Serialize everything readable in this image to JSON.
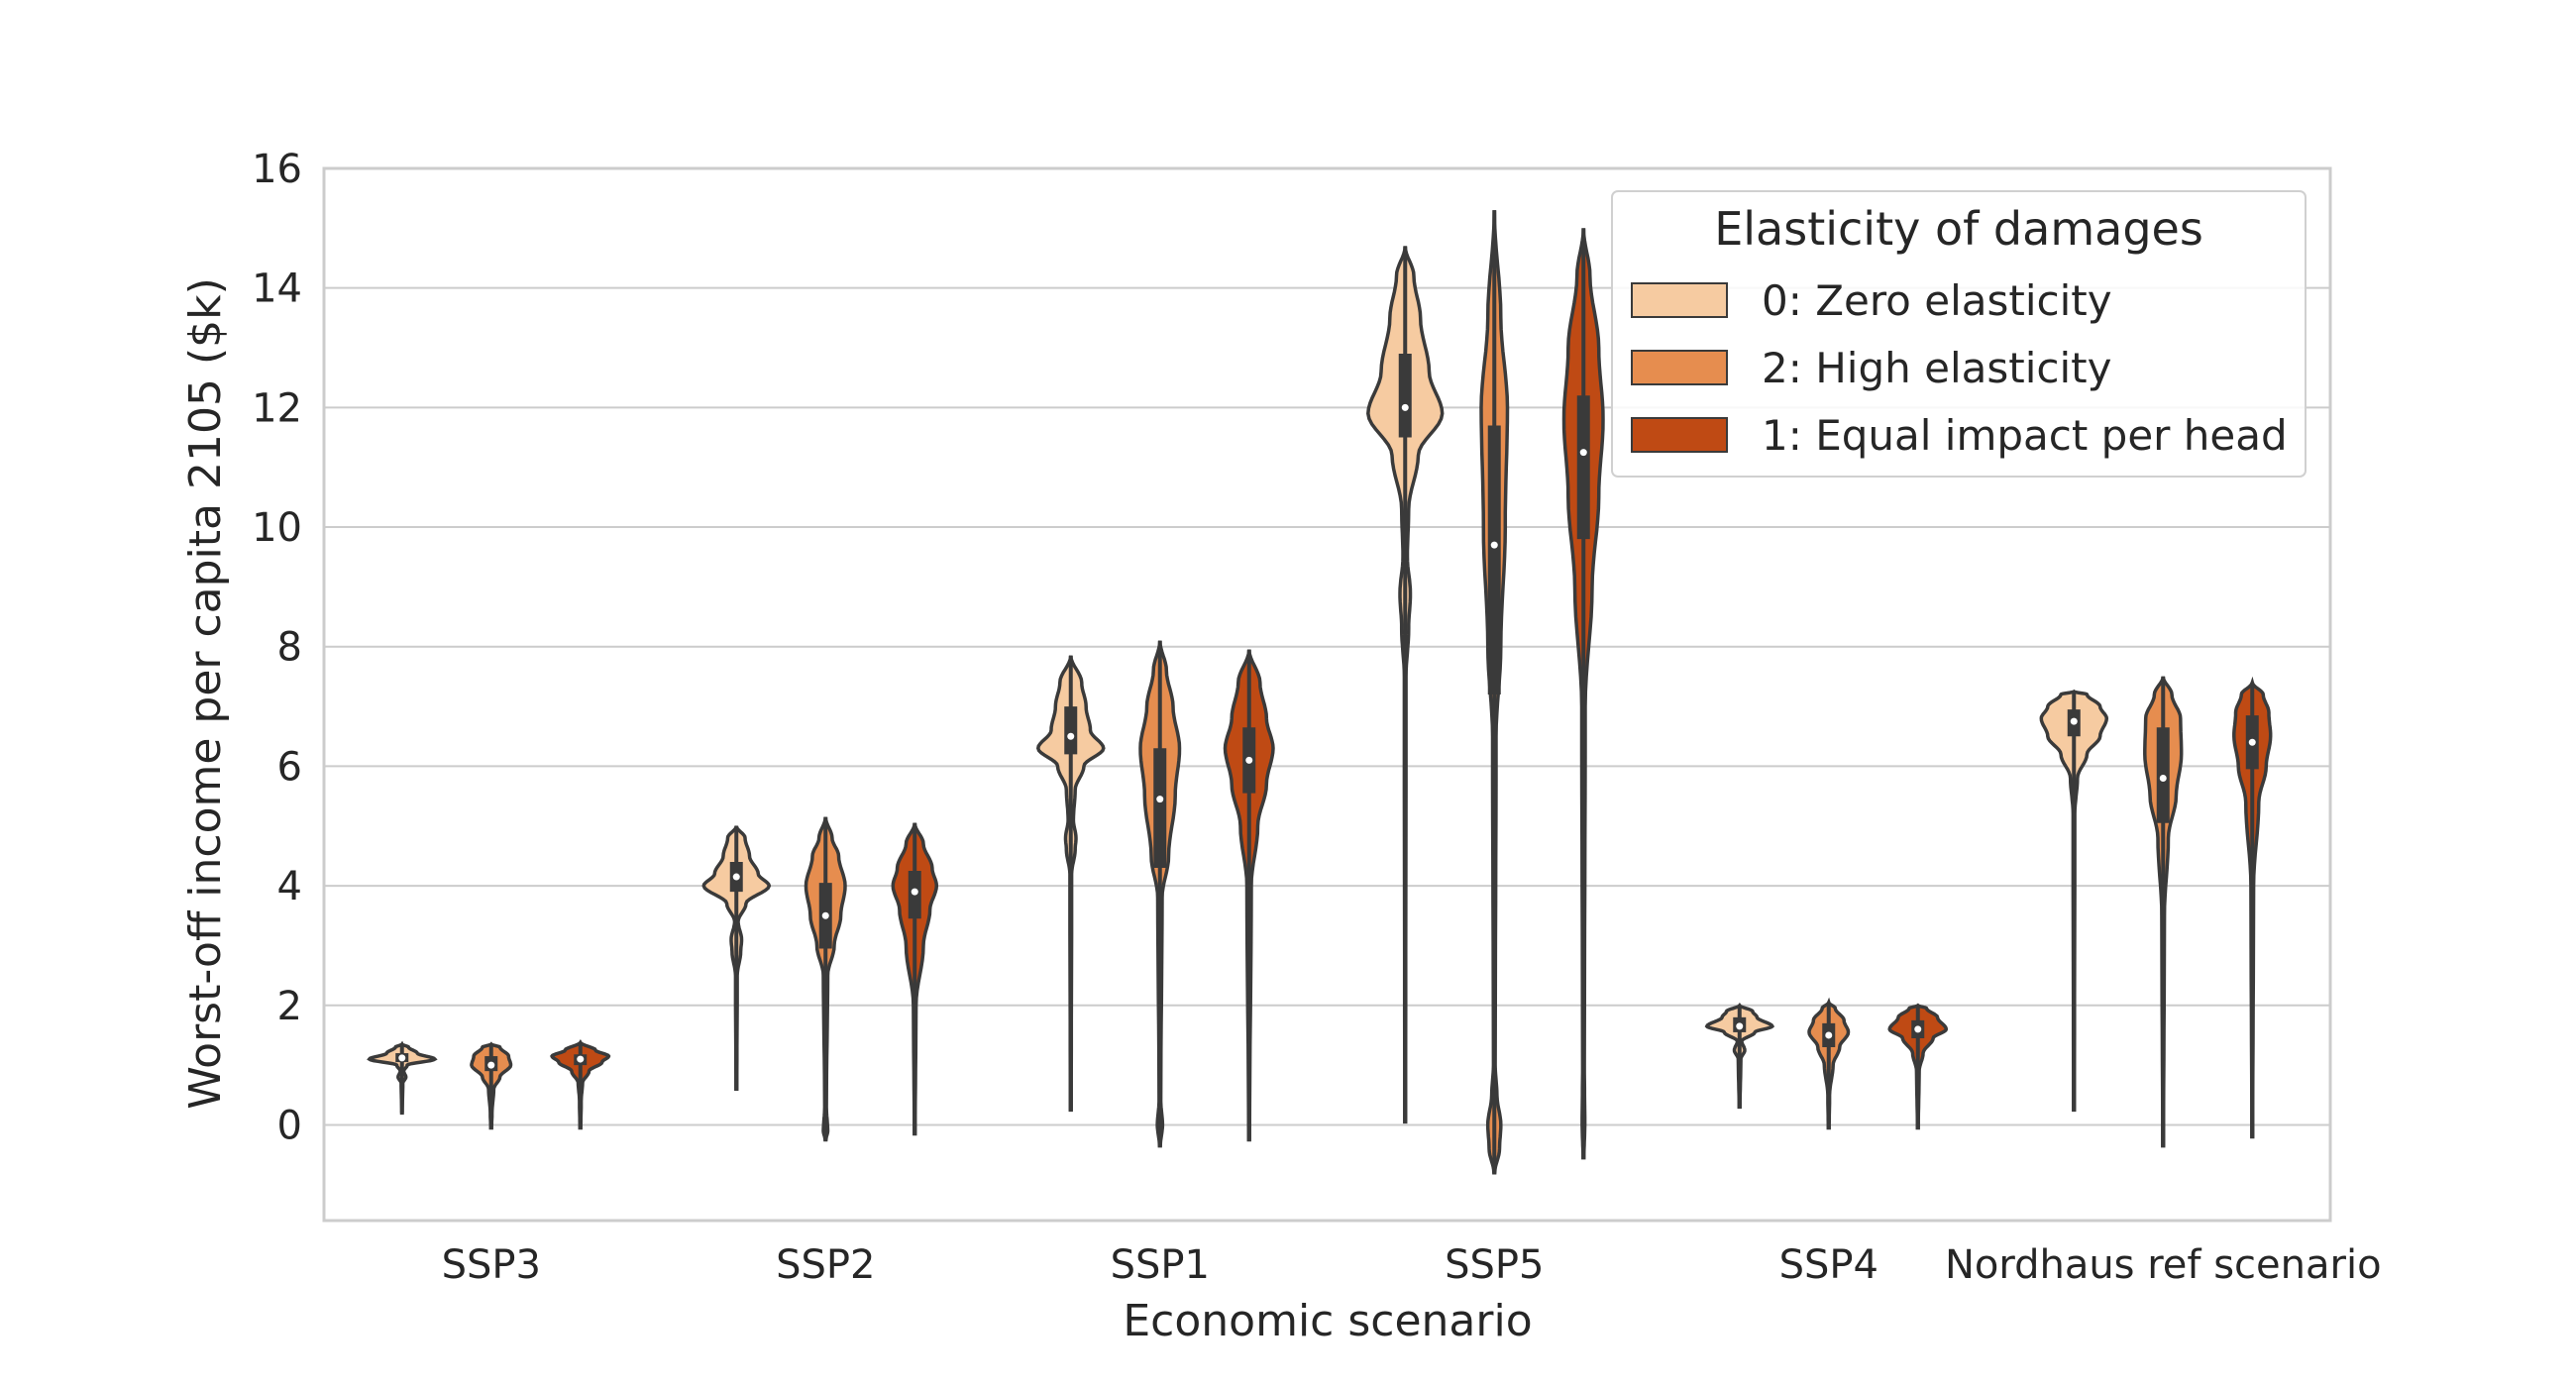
{
  "chart_data": {
    "type": "violin",
    "xlabel": "Economic scenario",
    "ylabel": "Worst-off income per capita 2105 ($k)",
    "ylim": [
      -1.6,
      16
    ],
    "yticks": [
      0,
      2,
      4,
      6,
      8,
      10,
      12,
      14,
      16
    ],
    "grid": true,
    "legend_position": "top-right",
    "legend": {
      "title": "Elasticity of damages",
      "entries": [
        {
          "label": "0: Zero elasticity",
          "color": "#f6cba1"
        },
        {
          "label": "2: High elasticity",
          "color": "#e68d4f"
        },
        {
          "label": "1: Equal impact per head",
          "color": "#bf4a14"
        }
      ]
    },
    "categories": [
      "SSP3",
      "SSP2",
      "SSP1",
      "SSP5",
      "SSP4",
      "Nordhaus ref scenario"
    ],
    "series": [
      {
        "name": "0: Zero elasticity",
        "color": "#f6cba1",
        "violins": [
          {
            "min": 0.2,
            "q1": 1.05,
            "median": 1.12,
            "q3": 1.2,
            "max": 1.35,
            "width_profile": [
              [
                0.2,
                0.005
              ],
              [
                0.7,
                0.02
              ],
              [
                0.8,
                0.09
              ],
              [
                0.9,
                0.04
              ],
              [
                1.0,
                0.12
              ],
              [
                1.1,
                0.75
              ],
              [
                1.2,
                0.35
              ],
              [
                1.3,
                0.15
              ],
              [
                1.35,
                0.0
              ]
            ]
          },
          {
            "min": 0.6,
            "q1": 3.9,
            "median": 4.15,
            "q3": 4.4,
            "max": 5.0,
            "width_profile": [
              [
                0.6,
                0.01
              ],
              [
                2.5,
                0.02
              ],
              [
                2.9,
                0.1
              ],
              [
                3.1,
                0.12
              ],
              [
                3.4,
                0.04
              ],
              [
                3.7,
                0.22
              ],
              [
                4.0,
                0.75
              ],
              [
                4.2,
                0.5
              ],
              [
                4.5,
                0.3
              ],
              [
                4.8,
                0.2
              ],
              [
                5.0,
                0.0
              ]
            ]
          },
          {
            "min": 0.25,
            "q1": 6.2,
            "median": 6.5,
            "q3": 7.0,
            "max": 7.85,
            "width_profile": [
              [
                0.25,
                0.01
              ],
              [
                4.2,
                0.02
              ],
              [
                4.6,
                0.1
              ],
              [
                4.8,
                0.12
              ],
              [
                5.1,
                0.06
              ],
              [
                5.6,
                0.1
              ],
              [
                6.0,
                0.3
              ],
              [
                6.3,
                0.75
              ],
              [
                6.6,
                0.45
              ],
              [
                7.0,
                0.35
              ],
              [
                7.4,
                0.25
              ],
              [
                7.85,
                0.0
              ]
            ]
          },
          {
            "min": 0.05,
            "q1": 11.5,
            "median": 12.0,
            "q3": 12.9,
            "max": 14.7,
            "width_profile": [
              [
                0.05,
                0.01
              ],
              [
                7.5,
                0.02
              ],
              [
                8.3,
                0.08
              ],
              [
                8.9,
                0.12
              ],
              [
                9.5,
                0.05
              ],
              [
                10.3,
                0.08
              ],
              [
                11.2,
                0.3
              ],
              [
                11.9,
                0.85
              ],
              [
                12.6,
                0.55
              ],
              [
                13.5,
                0.35
              ],
              [
                14.2,
                0.2
              ],
              [
                14.7,
                0.0
              ]
            ]
          },
          {
            "min": 0.3,
            "q1": 1.55,
            "median": 1.65,
            "q3": 1.8,
            "max": 2.0,
            "width_profile": [
              [
                0.3,
                0.01
              ],
              [
                1.1,
                0.03
              ],
              [
                1.25,
                0.12
              ],
              [
                1.4,
                0.05
              ],
              [
                1.55,
                0.35
              ],
              [
                1.65,
                0.75
              ],
              [
                1.8,
                0.4
              ],
              [
                1.9,
                0.3
              ],
              [
                2.0,
                0.0
              ]
            ]
          },
          {
            "min": 0.25,
            "q1": 6.5,
            "median": 6.75,
            "q3": 6.95,
            "max": 7.25,
            "width_profile": [
              [
                0.25,
                0.01
              ],
              [
                5.2,
                0.02
              ],
              [
                5.8,
                0.08
              ],
              [
                6.2,
                0.3
              ],
              [
                6.5,
                0.6
              ],
              [
                6.8,
                0.75
              ],
              [
                7.0,
                0.6
              ],
              [
                7.2,
                0.3
              ],
              [
                7.25,
                0.0
              ]
            ]
          }
        ]
      },
      {
        "name": "2: High elasticity",
        "color": "#e68d4f",
        "violins": [
          {
            "min": -0.05,
            "q1": 0.9,
            "median": 1.0,
            "q3": 1.15,
            "max": 1.35,
            "width_profile": [
              [
                -0.05,
                0.01
              ],
              [
                0.2,
                0.02
              ],
              [
                0.6,
                0.06
              ],
              [
                0.8,
                0.2
              ],
              [
                1.0,
                0.45
              ],
              [
                1.15,
                0.4
              ],
              [
                1.3,
                0.2
              ],
              [
                1.35,
                0.0
              ]
            ]
          },
          {
            "min": -0.25,
            "q1": 2.95,
            "median": 3.5,
            "q3": 4.05,
            "max": 5.15,
            "width_profile": [
              [
                -0.25,
                0.01
              ],
              [
                -0.1,
                0.05
              ],
              [
                0.3,
                0.02
              ],
              [
                2.5,
                0.05
              ],
              [
                3.0,
                0.2
              ],
              [
                3.5,
                0.35
              ],
              [
                4.0,
                0.45
              ],
              [
                4.5,
                0.3
              ],
              [
                4.8,
                0.15
              ],
              [
                5.15,
                0.0
              ]
            ]
          },
          {
            "min": -0.35,
            "q1": 4.3,
            "median": 5.45,
            "q3": 6.3,
            "max": 8.1,
            "width_profile": [
              [
                -0.35,
                0.01
              ],
              [
                0.0,
                0.06
              ],
              [
                0.4,
                0.02
              ],
              [
                3.8,
                0.05
              ],
              [
                4.5,
                0.2
              ],
              [
                5.5,
                0.35
              ],
              [
                6.3,
                0.45
              ],
              [
                7.0,
                0.3
              ],
              [
                7.6,
                0.15
              ],
              [
                8.1,
                0.0
              ]
            ]
          },
          {
            "min": -0.8,
            "q1": 7.2,
            "median": 9.7,
            "q3": 11.7,
            "max": 15.3,
            "width_profile": [
              [
                -0.8,
                0.01
              ],
              [
                -0.4,
                0.12
              ],
              [
                0.0,
                0.15
              ],
              [
                0.5,
                0.06
              ],
              [
                1.0,
                0.02
              ],
              [
                6.5,
                0.04
              ],
              [
                8.0,
                0.15
              ],
              [
                10.0,
                0.25
              ],
              [
                12.0,
                0.3
              ],
              [
                13.5,
                0.15
              ],
              [
                15.3,
                0.0
              ]
            ]
          },
          {
            "min": -0.05,
            "q1": 1.3,
            "median": 1.5,
            "q3": 1.7,
            "max": 2.05,
            "width_profile": [
              [
                -0.05,
                0.01
              ],
              [
                0.5,
                0.02
              ],
              [
                1.0,
                0.1
              ],
              [
                1.3,
                0.25
              ],
              [
                1.55,
                0.45
              ],
              [
                1.75,
                0.35
              ],
              [
                1.95,
                0.15
              ],
              [
                2.05,
                0.0
              ]
            ]
          },
          {
            "min": -0.35,
            "q1": 5.05,
            "median": 5.8,
            "q3": 6.65,
            "max": 7.5,
            "width_profile": [
              [
                -0.35,
                0.01
              ],
              [
                3.5,
                0.03
              ],
              [
                4.8,
                0.12
              ],
              [
                5.5,
                0.3
              ],
              [
                6.2,
                0.42
              ],
              [
                6.8,
                0.4
              ],
              [
                7.2,
                0.2
              ],
              [
                7.5,
                0.0
              ]
            ]
          }
        ]
      },
      {
        "name": "1: Equal impact per head",
        "color": "#bf4a14",
        "violins": [
          {
            "min": -0.05,
            "q1": 1.0,
            "median": 1.1,
            "q3": 1.18,
            "max": 1.38,
            "width_profile": [
              [
                -0.05,
                0.01
              ],
              [
                0.4,
                0.02
              ],
              [
                0.7,
                0.05
              ],
              [
                0.9,
                0.2
              ],
              [
                1.05,
                0.5
              ],
              [
                1.15,
                0.65
              ],
              [
                1.25,
                0.35
              ],
              [
                1.38,
                0.0
              ]
            ]
          },
          {
            "min": -0.15,
            "q1": 3.45,
            "median": 3.9,
            "q3": 4.25,
            "max": 5.05,
            "width_profile": [
              [
                -0.15,
                0.01
              ],
              [
                2.0,
                0.03
              ],
              [
                3.0,
                0.2
              ],
              [
                3.6,
                0.35
              ],
              [
                4.0,
                0.5
              ],
              [
                4.3,
                0.4
              ],
              [
                4.7,
                0.2
              ],
              [
                5.05,
                0.0
              ]
            ]
          },
          {
            "min": -0.25,
            "q1": 5.55,
            "median": 6.1,
            "q3": 6.65,
            "max": 7.95,
            "width_profile": [
              [
                -0.25,
                0.01
              ],
              [
                4.0,
                0.05
              ],
              [
                5.0,
                0.2
              ],
              [
                5.7,
                0.4
              ],
              [
                6.3,
                0.55
              ],
              [
                6.8,
                0.4
              ],
              [
                7.4,
                0.25
              ],
              [
                7.95,
                0.0
              ]
            ]
          },
          {
            "min": -0.55,
            "q1": 9.8,
            "median": 11.25,
            "q3": 12.2,
            "max": 15.0,
            "width_profile": [
              [
                -0.55,
                0.01
              ],
              [
                0.0,
                0.03
              ],
              [
                1.0,
                0.02
              ],
              [
                7.0,
                0.04
              ],
              [
                9.0,
                0.2
              ],
              [
                10.5,
                0.35
              ],
              [
                11.8,
                0.45
              ],
              [
                13.0,
                0.35
              ],
              [
                14.2,
                0.15
              ],
              [
                15.0,
                0.0
              ]
            ]
          },
          {
            "min": -0.05,
            "q1": 1.45,
            "median": 1.6,
            "q3": 1.75,
            "max": 2.0,
            "width_profile": [
              [
                -0.05,
                0.01
              ],
              [
                0.9,
                0.03
              ],
              [
                1.2,
                0.12
              ],
              [
                1.45,
                0.35
              ],
              [
                1.6,
                0.65
              ],
              [
                1.8,
                0.45
              ],
              [
                1.95,
                0.2
              ],
              [
                2.0,
                0.0
              ]
            ]
          },
          {
            "min": -0.2,
            "q1": 5.95,
            "median": 6.4,
            "q3": 6.85,
            "max": 7.4,
            "width_profile": [
              [
                -0.2,
                0.01
              ],
              [
                4.0,
                0.03
              ],
              [
                5.4,
                0.15
              ],
              [
                6.0,
                0.32
              ],
              [
                6.5,
                0.42
              ],
              [
                6.9,
                0.38
              ],
              [
                7.2,
                0.25
              ],
              [
                7.4,
                0.0
              ]
            ]
          }
        ]
      }
    ]
  }
}
